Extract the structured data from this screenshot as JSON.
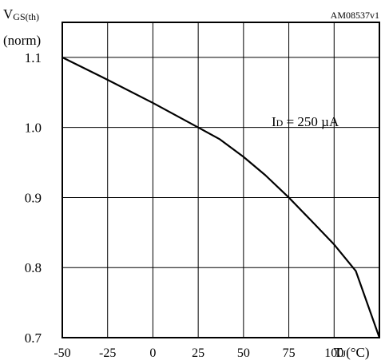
{
  "chart_data": {
    "type": "line",
    "code": "AM08537v1",
    "ylabel": {
      "main": "V",
      "sub": "GS(th)",
      "second_line": "(norm)"
    },
    "xlabel": {
      "main": "T",
      "sub": "J",
      "unit": "(°C)"
    },
    "annotation": {
      "main": "I",
      "sub": "D",
      "rest": " = 250  µA"
    },
    "xlim": [
      -50,
      125
    ],
    "ylim": [
      0.7,
      1.15
    ],
    "x_ticks": [
      -50,
      -25,
      0,
      25,
      50,
      75,
      100
    ],
    "x_tick_labels": [
      "-50",
      "-25",
      "0",
      "25",
      "50",
      "75",
      "100"
    ],
    "y_ticks": [
      0.7,
      0.8,
      0.9,
      1.0,
      1.1
    ],
    "y_tick_labels": [
      "0.7",
      "0.8",
      "0.9",
      "1.0",
      "1.1"
    ],
    "grid": true,
    "series": [
      {
        "x": [
          -50,
          -25,
          0,
          25,
          37,
          50,
          62,
          75,
          87,
          100,
          112,
          125
        ],
        "y": [
          1.1,
          1.068,
          1.035,
          1.0,
          0.983,
          0.958,
          0.932,
          0.9,
          0.868,
          0.833,
          0.795,
          0.7
        ]
      }
    ]
  }
}
